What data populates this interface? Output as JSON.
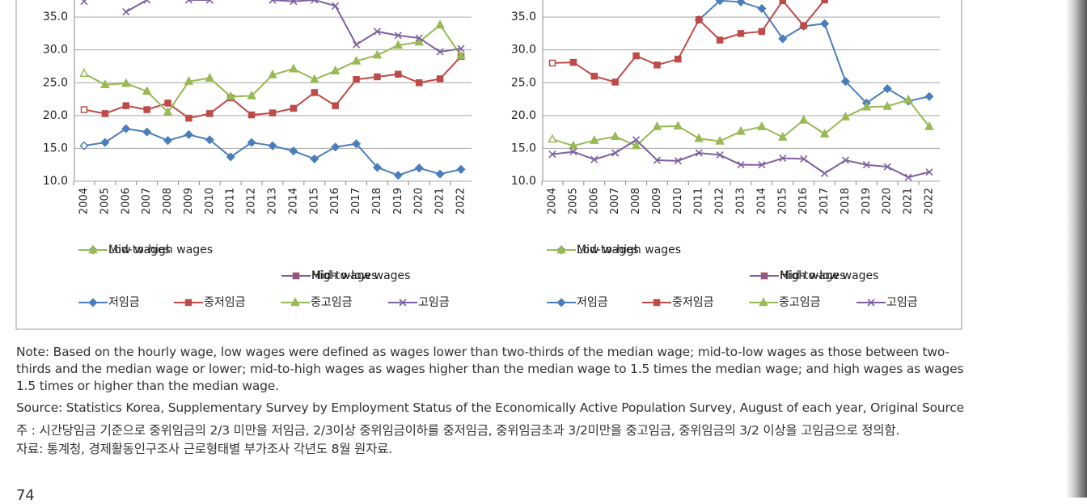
{
  "chart_data": [
    {
      "type": "line",
      "categories": [
        "2004",
        "2005",
        "2006",
        "2007",
        "2008",
        "2009",
        "2010",
        "2011",
        "2012",
        "2013",
        "2014",
        "2015",
        "2016",
        "2017",
        "2018",
        "2019",
        "2020",
        "2021",
        "2022"
      ],
      "ylim": [
        10,
        37.6
      ],
      "yticks": [
        {
          "value": 10,
          "label": "10.0"
        },
        {
          "value": 15,
          "label": "15.0"
        },
        {
          "value": 20,
          "label": "20.0"
        },
        {
          "value": 25,
          "label": "25.0"
        },
        {
          "value": 30,
          "label": "30.0"
        },
        {
          "value": 35,
          "label": "35.0"
        }
      ],
      "grid": true,
      "series": [
        {
          "name": "Low wages",
          "color": "#4a7ebb",
          "values": [
            15.4,
            15.9,
            18.0,
            17.5,
            16.2,
            17.1,
            16.3,
            13.7,
            15.9,
            15.4,
            14.6,
            13.4,
            15.2,
            15.7,
            12.1,
            10.9,
            12.0,
            11.1,
            11.8
          ]
        },
        {
          "name": "Mid-to-low wages",
          "color": "#be4b48",
          "values": [
            20.9,
            20.3,
            21.5,
            20.9,
            21.9,
            19.6,
            20.3,
            22.7,
            20.1,
            20.4,
            21.1,
            23.5,
            21.5,
            25.5,
            25.9,
            26.3,
            25.0,
            25.6,
            29.0
          ]
        },
        {
          "name": "Mid-to-high wages",
          "color": "#98b954",
          "values": [
            26.4,
            24.7,
            24.9,
            23.7,
            20.5,
            25.2,
            25.7,
            22.9,
            23.0,
            26.2,
            27.1,
            25.5,
            26.8,
            28.3,
            29.2,
            30.7,
            31.2,
            33.8,
            29.1
          ]
        },
        {
          "name": "High wages",
          "color": "#7d60a0",
          "values": [
            37.4,
            null,
            35.8,
            37.6,
            null,
            37.6,
            37.6,
            null,
            null,
            37.6,
            37.4,
            37.6,
            36.7,
            30.8,
            32.8,
            32.2,
            31.8,
            29.7,
            30.2
          ]
        }
      ],
      "series_ko": [
        "저임금",
        "중저임금",
        "중고임금",
        "고임금"
      ]
    },
    {
      "type": "line",
      "categories": [
        "2004",
        "2005",
        "2006",
        "2007",
        "2008",
        "2009",
        "2010",
        "2011",
        "2012",
        "2013",
        "2014",
        "2015",
        "2016",
        "2017",
        "2018",
        "2019",
        "2020",
        "2021",
        "2022"
      ],
      "ylim": [
        10,
        37.6
      ],
      "yticks": [
        {
          "value": 10,
          "label": "10.0"
        },
        {
          "value": 15,
          "label": "15.0"
        },
        {
          "value": 20,
          "label": "20.0"
        },
        {
          "value": 25,
          "label": "25.0"
        },
        {
          "value": 30,
          "label": "30.0"
        },
        {
          "value": 35,
          "label": "35.0"
        }
      ],
      "grid": true,
      "series": [
        {
          "name": "Low wages",
          "color": "#4a7ebb",
          "values": [
            null,
            null,
            null,
            null,
            null,
            null,
            null,
            34.6,
            37.5,
            37.3,
            36.3,
            31.7,
            33.6,
            34.0,
            25.2,
            21.9,
            24.1,
            22.2,
            22.9
          ]
        },
        {
          "name": "Mid-to-low wages",
          "color": "#be4b48",
          "values": [
            28.0,
            28.1,
            26.0,
            25.1,
            29.1,
            27.7,
            28.6,
            34.6,
            31.5,
            32.5,
            32.8,
            37.5,
            33.7,
            37.6,
            null,
            null,
            null,
            null,
            null
          ]
        },
        {
          "name": "Mid-to-high wages",
          "color": "#98b954",
          "values": [
            16.4,
            15.4,
            16.2,
            16.8,
            15.4,
            18.3,
            18.4,
            16.5,
            16.1,
            17.6,
            18.3,
            16.7,
            19.3,
            17.2,
            19.8,
            21.3,
            21.4,
            22.4,
            18.3
          ]
        },
        {
          "name": "High wages",
          "color": "#7d60a0",
          "values": [
            14.1,
            14.5,
            13.3,
            14.3,
            16.3,
            13.2,
            13.1,
            14.3,
            14.0,
            12.5,
            12.5,
            13.5,
            13.4,
            11.2,
            13.2,
            12.5,
            12.2,
            10.6,
            11.4
          ]
        }
      ],
      "series_ko": [
        "저임금",
        "중저임금",
        "중고임금",
        "고임금"
      ]
    }
  ],
  "notes": [
    "Note: Based on the hourly wage, low wages were defined as wages lower than two-thirds of the median wage; mid-to-low wages as those between two-thirds and the median wage or lower; mid-to-high wages as wages higher than the median wage to 1.5 times  the median wage; and high wages as wages 1.5 times or higher than the median wage.",
    "Source: Statistics Korea, Supplementary Survey by Employment Status of the Economically Active Population Survey,  August of each year, Original Source",
    "주 : 시간당임금 기준으로 중위임금의 2/3 미만을 저임금, 2/3이상 중위임금이하를 중저임금, 중위임금초과 3/2미만을 중고임금, 중위임금의 3/2 이상을 고임금으로 정의함.",
    "자료: 통계청, 경제활동인구조사 근로형태별 부가조사 각년도 8월 원자료."
  ],
  "page_number": "74"
}
